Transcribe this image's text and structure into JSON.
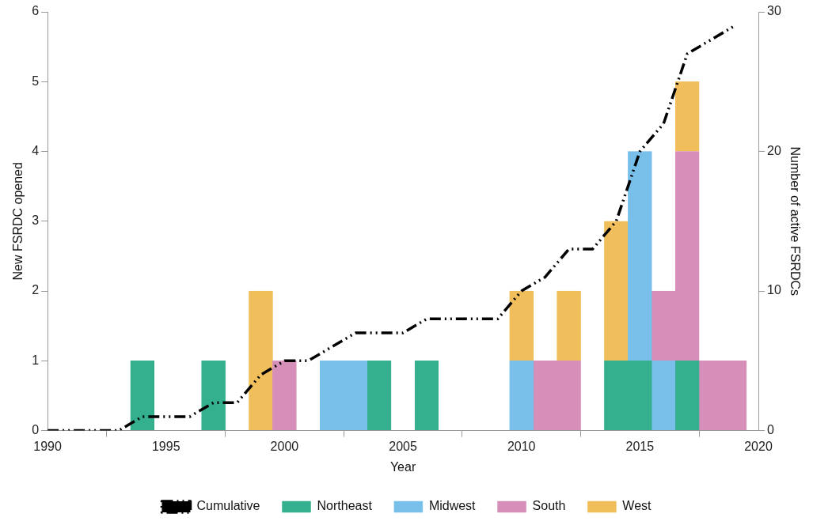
{
  "chart_data": {
    "type": "bar",
    "xlabel": "Year",
    "ylabel": "New FSRDC opened",
    "y2label": "Number of active FSRDCs",
    "stacked": true,
    "legend": "bottom",
    "x": [
      1990,
      1991,
      1992,
      1993,
      1994,
      1995,
      1996,
      1997,
      1998,
      1999,
      2000,
      2001,
      2002,
      2003,
      2004,
      2005,
      2006,
      2007,
      2008,
      2009,
      2010,
      2011,
      2012,
      2013,
      2014,
      2015,
      2016,
      2017,
      2018,
      2019
    ],
    "xlim": [
      1990,
      2020
    ],
    "xticks": [
      1990,
      1995,
      2000,
      2005,
      2010,
      2015,
      2020
    ],
    "ylim": [
      0,
      6
    ],
    "yticks": [
      0,
      1,
      2,
      3,
      4,
      5,
      6
    ],
    "y2lim": [
      0,
      30
    ],
    "y2ticks": [
      0,
      10,
      20,
      30
    ],
    "series": [
      {
        "name": "Northeast",
        "color": "#34b08f",
        "values": [
          null,
          null,
          null,
          null,
          1,
          null,
          null,
          1,
          null,
          null,
          null,
          null,
          null,
          null,
          1,
          null,
          1,
          null,
          null,
          null,
          null,
          null,
          null,
          null,
          1,
          1,
          null,
          1,
          null,
          null
        ]
      },
      {
        "name": "Midwest",
        "color": "#78c0ea",
        "values": [
          null,
          null,
          null,
          null,
          null,
          null,
          null,
          null,
          null,
          null,
          null,
          null,
          1,
          1,
          null,
          null,
          null,
          null,
          null,
          null,
          1,
          null,
          null,
          null,
          null,
          3,
          1,
          null,
          null,
          null
        ]
      },
      {
        "name": "South",
        "color": "#d68fb8",
        "values": [
          null,
          null,
          null,
          null,
          null,
          null,
          null,
          null,
          null,
          null,
          1,
          null,
          null,
          null,
          null,
          null,
          null,
          null,
          null,
          null,
          null,
          1,
          1,
          null,
          null,
          null,
          1,
          3,
          1,
          1
        ]
      },
      {
        "name": "West",
        "color": "#f0be5a",
        "values": [
          null,
          null,
          null,
          null,
          null,
          null,
          null,
          null,
          null,
          2,
          null,
          null,
          null,
          null,
          null,
          null,
          null,
          null,
          null,
          null,
          1,
          null,
          1,
          null,
          2,
          null,
          null,
          1,
          null,
          null
        ]
      },
      {
        "name": "Cumulative",
        "type": "line",
        "axis": "y2",
        "color": "#000000",
        "line_style": "dashed",
        "marker": "none",
        "values": [
          0,
          0,
          0,
          0,
          1,
          1,
          1,
          2,
          2,
          4,
          5,
          5,
          6,
          7,
          7,
          7,
          8,
          8,
          8,
          8,
          10,
          11,
          13,
          13,
          15,
          20,
          22,
          27,
          28,
          29
        ]
      }
    ]
  }
}
